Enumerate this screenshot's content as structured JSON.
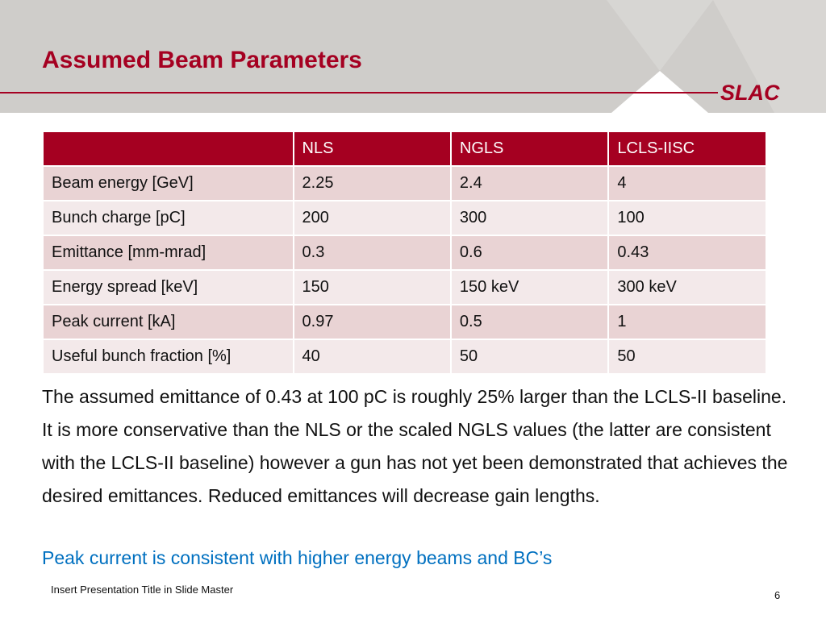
{
  "slide": {
    "title": "Assumed Beam Parameters",
    "logo": "SLAC",
    "footer": "Insert Presentation Title in Slide Master",
    "page_number": "6"
  },
  "table": {
    "headers": [
      "",
      "NLS",
      "NGLS",
      "LCLS-IISC"
    ],
    "rows": [
      [
        "Beam energy [GeV]",
        "2.25",
        "2.4",
        "4"
      ],
      [
        "Bunch charge [pC]",
        "200",
        "300",
        "100"
      ],
      [
        "Emittance [mm-mrad]",
        "0.3",
        "0.6",
        "0.43"
      ],
      [
        "Energy spread [keV]",
        "150",
        "150 keV",
        "300 keV"
      ],
      [
        "Peak current [kA]",
        "0.97",
        "0.5",
        "1"
      ],
      [
        "Useful bunch fraction [%]",
        "40",
        "50",
        "50"
      ]
    ]
  },
  "body": {
    "paragraph": "The assumed emittance of 0.43 at 100 pC is roughly 25% larger than the LCLS-II baseline.  It is more conservative than the NLS or the scaled NGLS values (the latter are consistent with the LCLS-II baseline) however a gun has not yet been demonstrated that achieves the desired emittances.  Reduced emittances will decrease gain lengths.",
    "highlight": "Peak current is consistent with higher energy beams and BC’s"
  },
  "colors": {
    "accent": "#a50021",
    "header_band": "#cfcdca",
    "highlight_text": "#0070c0",
    "row_odd": "#e9d3d4",
    "row_even": "#f3e9ea"
  }
}
